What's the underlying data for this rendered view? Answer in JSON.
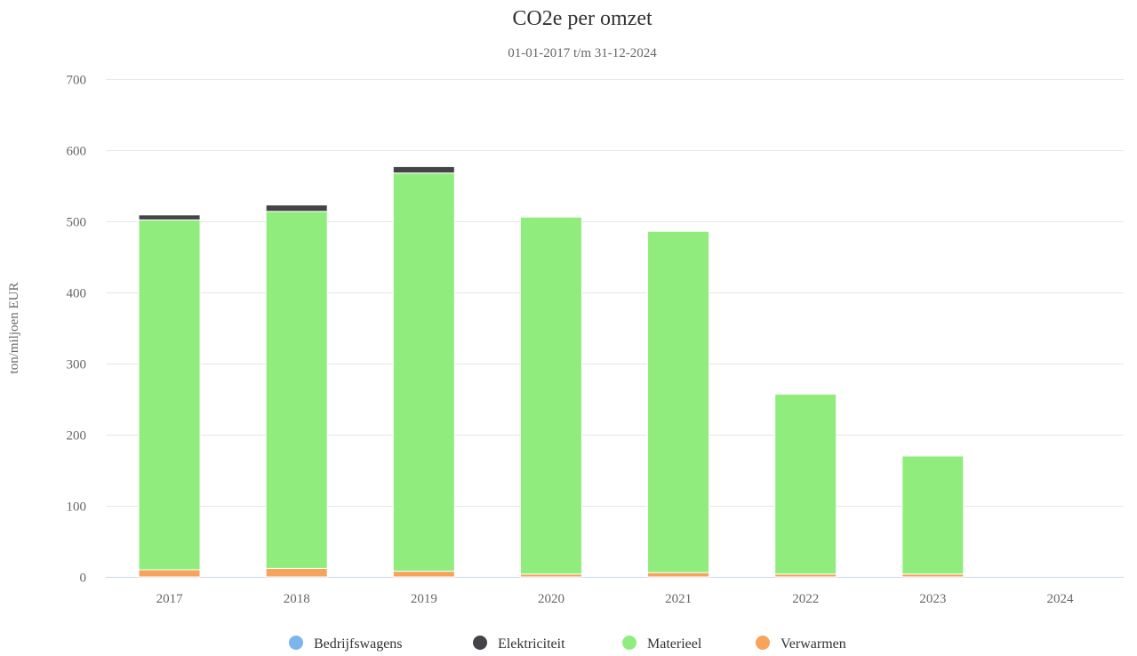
{
  "chart_data": {
    "type": "bar",
    "stacked": true,
    "title": "CO2e per omzet",
    "subtitle": "01-01-2017 t/m 31-12-2024",
    "ylabel": "ton/miljoen EUR",
    "xlabel": "",
    "ylim": [
      0,
      700
    ],
    "yticks": [
      0,
      100,
      200,
      300,
      400,
      500,
      600,
      700
    ],
    "grid": true,
    "legend_position": "bottom",
    "categories": [
      "2017",
      "2018",
      "2019",
      "2020",
      "2021",
      "2022",
      "2023",
      "2024"
    ],
    "series": [
      {
        "name": "Bedrijfswagens",
        "color": "#7cb5ec",
        "values": [
          0,
          0,
          0,
          0,
          0,
          0,
          0,
          0
        ]
      },
      {
        "name": "Verwarmen",
        "color": "#f7a35c",
        "values": [
          10,
          12,
          8,
          4,
          6,
          4,
          4,
          0
        ]
      },
      {
        "name": "Materieel",
        "color": "#90ed7d",
        "values": [
          492,
          502,
          560,
          502,
          480,
          253,
          166,
          0
        ]
      },
      {
        "name": "Elektriciteit",
        "color": "#434348",
        "values": [
          7,
          9,
          9,
          0,
          0,
          0,
          0,
          0
        ]
      }
    ],
    "legend_order": [
      "Bedrijfswagens",
      "Elektriciteit",
      "Materieel",
      "Verwarmen"
    ]
  }
}
